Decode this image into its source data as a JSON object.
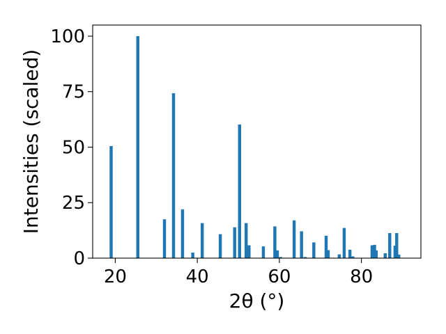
{
  "chart_data": {
    "type": "bar",
    "xlabel": "2θ (°)",
    "ylabel": "Intensities (scaled)",
    "xlim": [
      14.5,
      94.5
    ],
    "ylim": [
      0,
      105
    ],
    "xticks": [
      20,
      40,
      60,
      80
    ],
    "yticks": [
      0,
      25,
      50,
      75,
      100
    ],
    "bar_width_deg": 0.75,
    "color": "#1f77b4",
    "x": [
      19.0,
      25.5,
      32.0,
      34.2,
      36.4,
      38.9,
      41.2,
      45.6,
      49.1,
      50.3,
      51.9,
      52.6,
      56.1,
      58.9,
      59.5,
      60.3,
      63.6,
      65.4,
      66.3,
      68.4,
      71.4,
      71.9,
      74.6,
      75.8,
      77.2,
      77.9,
      82.6,
      83.2,
      83.6,
      85.8,
      86.9,
      88.2,
      88.6,
      89.1
    ],
    "values": [
      50.5,
      100,
      17.5,
      74.3,
      22,
      2.5,
      15.8,
      10.8,
      13.9,
      60.2,
      15.8,
      5.8,
      5.3,
      14.3,
      3.5,
      0.5,
      17,
      12.1,
      0.5,
      7.1,
      10.1,
      3.6,
      1.7,
      13.6,
      3.8,
      0.8,
      5.8,
      6,
      3.5,
      2.2,
      11.3,
      5.6,
      11.3,
      1.6
    ]
  }
}
